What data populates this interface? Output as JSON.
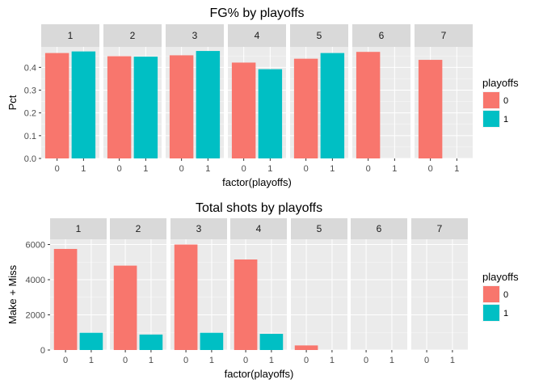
{
  "colors": {
    "level0": "#F8766D",
    "level1": "#00BFC4",
    "panel": "#EBEBEB",
    "strip": "#D9D9D9",
    "grid": "#FFFFFF"
  },
  "chart_data": [
    {
      "type": "bar",
      "title": "FG% by playoffs",
      "xlabel": "factor(playoffs)",
      "ylabel": "Pct",
      "facets": [
        "1",
        "2",
        "3",
        "4",
        "5",
        "6",
        "7"
      ],
      "categories": [
        "0",
        "1"
      ],
      "yticks": [
        "0.0",
        "0.1",
        "0.2",
        "0.3",
        "0.4"
      ],
      "ylim": [
        0,
        0.49
      ],
      "legend": {
        "title": "playoffs",
        "labels": [
          "0",
          "1"
        ],
        "position": "right"
      },
      "values": [
        [
          0.463,
          0.47
        ],
        [
          0.449,
          0.447
        ],
        [
          0.453,
          0.472
        ],
        [
          0.421,
          0.392
        ],
        [
          0.438,
          0.463
        ],
        [
          0.468,
          null
        ],
        [
          0.433,
          null
        ]
      ]
    },
    {
      "type": "bar",
      "title": "Total shots by playoffs",
      "xlabel": "factor(playoffs)",
      "ylabel": "Make + Miss",
      "facets": [
        "1",
        "2",
        "3",
        "4",
        "5",
        "6",
        "7"
      ],
      "categories": [
        "0",
        "1"
      ],
      "yticks": [
        "0",
        "2000",
        "4000",
        "6000"
      ],
      "ylim": [
        0,
        6300
      ],
      "legend": {
        "title": "playoffs",
        "labels": [
          "0",
          "1"
        ],
        "position": "right"
      },
      "values": [
        [
          5750,
          980
        ],
        [
          4800,
          880
        ],
        [
          6000,
          980
        ],
        [
          5150,
          920
        ],
        [
          260,
          null
        ],
        [
          null,
          null
        ],
        [
          null,
          null
        ]
      ]
    }
  ]
}
